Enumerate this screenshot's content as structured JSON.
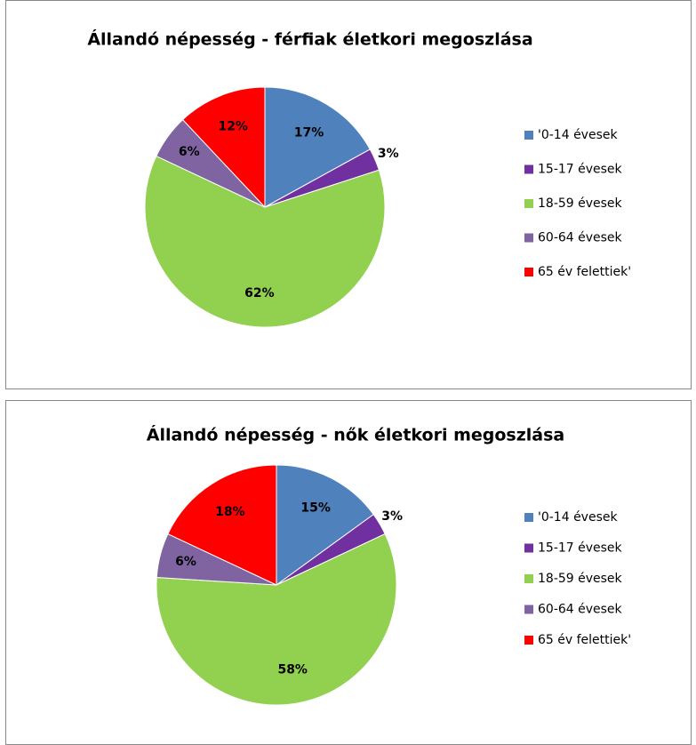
{
  "chart_data": [
    {
      "type": "pie",
      "title": "Állandó népesség - férfiak életkori megoszlása",
      "categories": [
        "'0-14 évesek",
        "15-17 évesek",
        "18-59 évesek",
        "60-64 évesek",
        "65 év felettiek'"
      ],
      "values": [
        17,
        3,
        62,
        6,
        12
      ],
      "value_labels": [
        "17%",
        "3%",
        "62%",
        "6%",
        "12%"
      ],
      "colors": [
        "#4f81bd",
        "#7030a0",
        "#92d050",
        "#8064a2",
        "#ff0000"
      ]
    },
    {
      "type": "pie",
      "title": "Állandó népesség - nők életkori megoszlása",
      "categories": [
        "'0-14 évesek",
        "15-17 évesek",
        "18-59 évesek",
        "60-64 évesek",
        "65 év felettiek'"
      ],
      "values": [
        15,
        3,
        58,
        6,
        18
      ],
      "value_labels": [
        "15%",
        "3%",
        "58%",
        "6%",
        "18%"
      ],
      "colors": [
        "#4f81bd",
        "#7030a0",
        "#92d050",
        "#8064a2",
        "#ff0000"
      ]
    }
  ]
}
